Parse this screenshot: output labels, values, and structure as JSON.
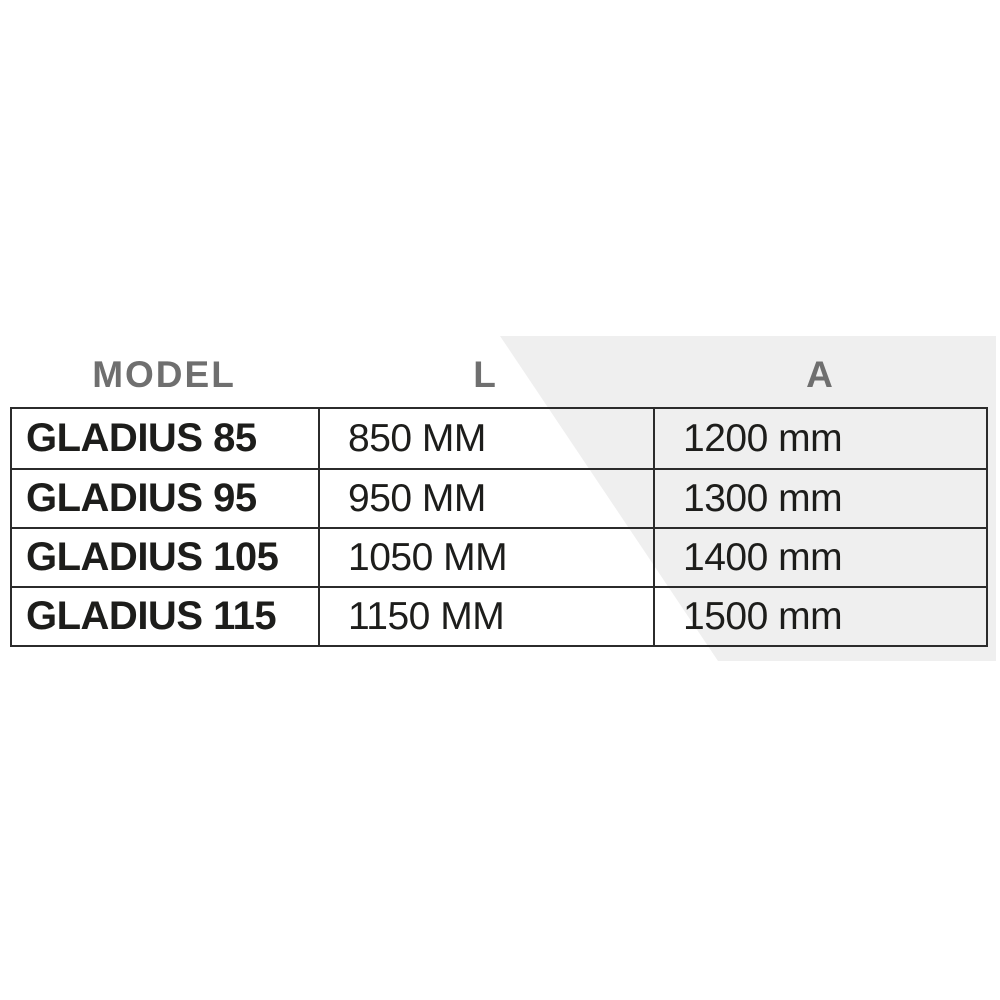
{
  "colors": {
    "band": "#efefef",
    "header_text": "#6f6f6f",
    "text": "#1d1d1b",
    "border": "#2b2b2b"
  },
  "chart_data": {
    "type": "table",
    "title": "",
    "columns": [
      "MODEL",
      "L",
      "A"
    ],
    "rows": [
      [
        "GLADIUS 85",
        "850 MM",
        "1200 mm"
      ],
      [
        "GLADIUS 95",
        "950 MM",
        "1300 mm"
      ],
      [
        "GLADIUS 105",
        "1050 MM",
        "1400 mm"
      ],
      [
        "GLADIUS 115",
        "1150 MM",
        "1500 mm"
      ]
    ]
  }
}
